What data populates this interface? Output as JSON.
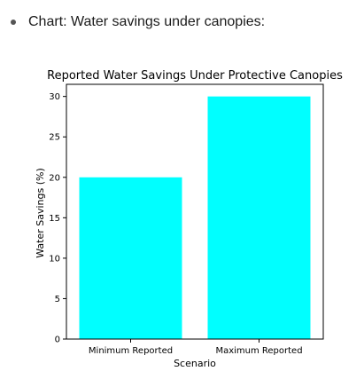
{
  "bullet": {
    "text": "Chart: Water savings under canopies:"
  },
  "colors": {
    "bar": "#00ffff",
    "axis": "#000000",
    "text": "#000000"
  },
  "chart_data": {
    "type": "bar",
    "title": "Reported Water Savings Under Protective Canopies",
    "xlabel": "Scenario",
    "ylabel": "Water Savings (%)",
    "categories": [
      "Minimum Reported",
      "Maximum Reported"
    ],
    "values": [
      20,
      30
    ],
    "ylim": [
      0,
      31.5
    ],
    "yticks": [
      0,
      5,
      10,
      15,
      20,
      25,
      30
    ],
    "grid": false
  }
}
